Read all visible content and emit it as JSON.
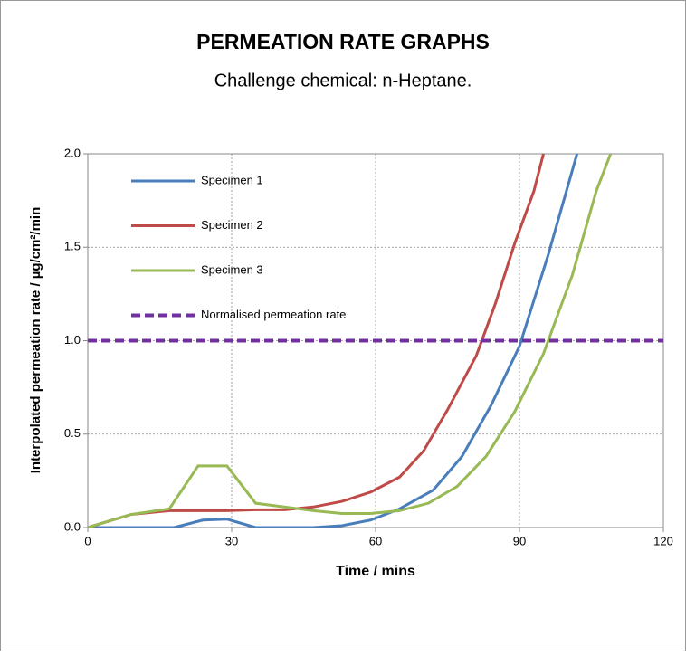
{
  "chart_data": {
    "type": "line",
    "title": "PERMEATION RATE GRAPHS",
    "subtitle": "Challenge chemical: n-Heptane.",
    "x_label": "Time / mins",
    "y_label": "Interpolated permeation rate  / µg/cm²/min",
    "xlim": [
      0,
      120
    ],
    "xticks": [
      0,
      30,
      60,
      90,
      120
    ],
    "ylim": [
      0,
      2
    ],
    "yticks": [
      {
        "value": 0,
        "label": "0.0"
      },
      {
        "value": 0.5,
        "label": "0.5"
      },
      {
        "value": 1,
        "label": "1.0"
      },
      {
        "value": 1.5,
        "label": "1.5"
      },
      {
        "value": 2,
        "label": "2.0"
      }
    ],
    "grid": true,
    "legend": "upper left",
    "series": [
      {
        "name": "Specimen 1",
        "color": "#4a7ebb",
        "x": [
          0,
          18,
          24,
          29,
          35,
          47,
          53,
          59,
          65,
          72,
          78,
          84,
          90,
          96,
          102
        ],
        "values": [
          0,
          0,
          0.04,
          0.045,
          0,
          0,
          0.01,
          0.04,
          0.1,
          0.2,
          0.38,
          0.65,
          0.97,
          1.46,
          2.0
        ]
      },
      {
        "name": "Specimen 2",
        "color": "#be4b48",
        "x": [
          0,
          9,
          17,
          23,
          29,
          35,
          41,
          47,
          53,
          59,
          65,
          70,
          75,
          81,
          85,
          89,
          93,
          95
        ],
        "values": [
          0,
          0.07,
          0.09,
          0.09,
          0.09,
          0.095,
          0.095,
          0.11,
          0.14,
          0.19,
          0.27,
          0.41,
          0.63,
          0.92,
          1.2,
          1.52,
          1.8,
          2.0
        ]
      },
      {
        "name": "Specimen 3",
        "color": "#98b954",
        "x": [
          0,
          9,
          17,
          23,
          29,
          35,
          41,
          47,
          53,
          59,
          65,
          71,
          77,
          83,
          89,
          95,
          101,
          106,
          109
        ],
        "values": [
          0,
          0.07,
          0.1,
          0.33,
          0.33,
          0.13,
          0.11,
          0.09,
          0.075,
          0.075,
          0.09,
          0.13,
          0.22,
          0.38,
          0.62,
          0.93,
          1.35,
          1.8,
          2.0
        ]
      },
      {
        "name": "Normalised permeation rate",
        "color": "#7030a0",
        "dashed": true,
        "x": [
          0,
          120
        ],
        "values": [
          1,
          1
        ]
      }
    ]
  }
}
